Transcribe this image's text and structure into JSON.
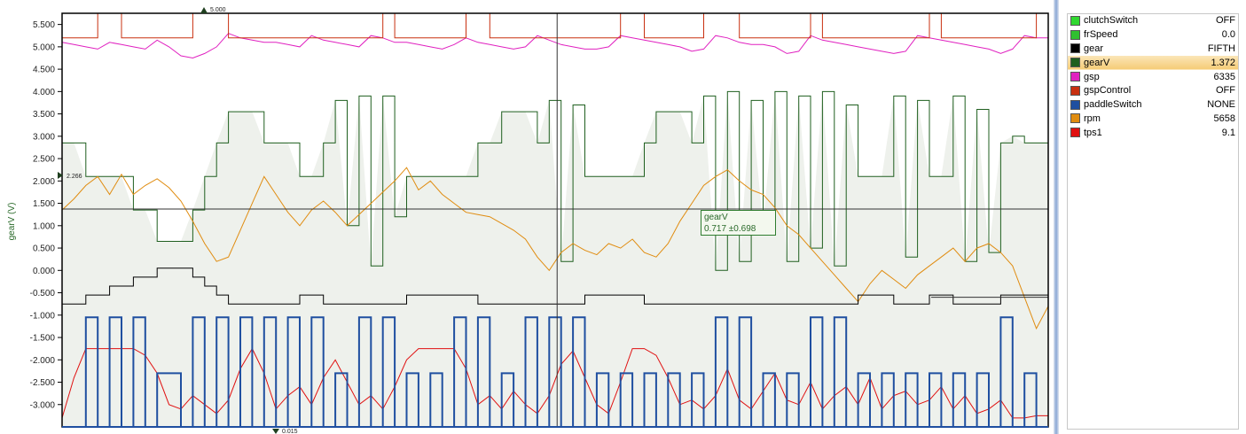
{
  "chart_data": {
    "type": "line",
    "ylabel": "gearV (V)",
    "ylim": [
      -3.5,
      5.75
    ],
    "yticks": [
      "5.500",
      "5.000",
      "4.500",
      "4.000",
      "3.500",
      "3.000",
      "2.500",
      "2.000",
      "1.500",
      "1.000",
      "0.500",
      "0.000",
      "-0.500",
      "-1.000",
      "-1.500",
      "-2.000",
      "-2.500",
      "-3.000"
    ],
    "ytick_values": [
      5.5,
      5.0,
      4.5,
      4.0,
      3.5,
      3.0,
      2.5,
      2.0,
      1.5,
      1.0,
      0.5,
      0.0,
      -0.5,
      -1.0,
      -1.5,
      -2.0,
      -2.5,
      -3.0
    ],
    "markers": {
      "top": "5.000",
      "left": "2.266",
      "bottom": "0.015"
    },
    "cursor": {
      "horizontal_value": 1.372
    },
    "tooltip": {
      "series": "gearV",
      "value": "0.717 ±0.698"
    },
    "series": [
      {
        "name": "gsp",
        "color": "#e020c0",
        "y": [
          5.1,
          5.05,
          5.0,
          4.95,
          5.1,
          5.05,
          5.0,
          4.95,
          5.15,
          5.0,
          4.8,
          4.75,
          4.85,
          5.0,
          5.3,
          5.2,
          5.15,
          5.1,
          5.1,
          5.05,
          5.0,
          5.25,
          5.15,
          5.1,
          5.05,
          5.0,
          5.25,
          5.2,
          5.1,
          5.1,
          5.05,
          5.0,
          4.95,
          5.05,
          5.2,
          5.1,
          5.05,
          5.0,
          4.95,
          5.0,
          5.25,
          5.15,
          5.05,
          5.0,
          4.95,
          4.95,
          5.0,
          5.25,
          5.2,
          5.15,
          5.1,
          5.05,
          5.0,
          4.9,
          4.95,
          5.25,
          5.2,
          5.1,
          5.05,
          5.05,
          5.0,
          4.85,
          4.9,
          5.25,
          5.15,
          5.1,
          5.05,
          5.0,
          4.95,
          4.9,
          4.85,
          4.9,
          5.25,
          5.2,
          5.15,
          5.1,
          5.05,
          5.0,
          4.95,
          4.85,
          4.95,
          5.25,
          5.2,
          5.2
        ]
      },
      {
        "name": "gspControl",
        "color": "#c83010",
        "y": [
          5.2,
          5.2,
          5.2,
          5.75,
          5.75,
          5.2,
          5.2,
          5.2,
          5.2,
          5.2,
          5.2,
          5.75,
          5.75,
          5.75,
          5.2,
          5.2,
          5.2,
          5.2,
          5.2,
          5.2,
          5.2,
          5.2,
          5.2,
          5.2,
          5.2,
          5.2,
          5.2,
          5.75,
          5.2,
          5.2,
          5.2,
          5.2,
          5.2,
          5.2,
          5.75,
          5.75,
          5.2,
          5.2,
          5.2,
          5.2,
          5.2,
          5.2,
          5.2,
          5.2,
          5.2,
          5.2,
          5.2,
          5.75,
          5.75,
          5.2,
          5.2,
          5.2,
          5.2,
          5.2,
          5.75,
          5.75,
          5.75,
          5.2,
          5.2,
          5.2,
          5.2,
          5.2,
          5.2,
          5.75,
          5.2,
          5.2,
          5.2,
          5.2,
          5.2,
          5.2,
          5.2,
          5.2,
          5.2,
          5.75,
          5.2,
          5.2,
          5.2,
          5.2,
          5.2,
          5.2,
          5.2,
          5.2,
          5.75,
          5.2
        ]
      },
      {
        "name": "gearV",
        "color": "#1f5f1f",
        "y": [
          2.85,
          2.85,
          2.1,
          2.1,
          2.1,
          2.1,
          1.35,
          1.35,
          0.65,
          0.65,
          0.65,
          1.35,
          2.1,
          2.85,
          3.55,
          3.55,
          3.55,
          2.85,
          2.85,
          2.85,
          2.1,
          2.1,
          2.85,
          3.8,
          1.0,
          3.9,
          0.1,
          3.9,
          1.2,
          2.1,
          2.1,
          2.1,
          2.1,
          2.1,
          2.1,
          2.85,
          2.85,
          3.55,
          3.55,
          3.55,
          2.85,
          3.8,
          0.2,
          3.7,
          2.1,
          2.1,
          2.1,
          2.1,
          2.1,
          2.85,
          3.55,
          3.55,
          3.55,
          2.85,
          3.9,
          0.0,
          4.0,
          0.2,
          3.8,
          1.0,
          4.0,
          0.2,
          3.9,
          0.5,
          4.0,
          0.1,
          3.7,
          2.1,
          2.1,
          2.1,
          3.9,
          0.3,
          3.8,
          2.1,
          2.1,
          3.9,
          0.2,
          3.6,
          0.4,
          2.85,
          3.0,
          2.85,
          2.85,
          2.85
        ]
      },
      {
        "name": "rpm",
        "color": "#e08c10",
        "y": [
          1.35,
          1.6,
          1.9,
          2.1,
          1.7,
          2.15,
          1.7,
          1.9,
          2.05,
          1.85,
          1.55,
          1.1,
          0.6,
          0.2,
          0.3,
          0.9,
          1.5,
          2.1,
          1.7,
          1.3,
          1.0,
          1.35,
          1.55,
          1.3,
          1.0,
          1.25,
          1.5,
          1.75,
          2.0,
          2.3,
          1.8,
          2.0,
          1.7,
          1.5,
          1.3,
          1.25,
          1.2,
          1.05,
          0.9,
          0.7,
          0.3,
          0.0,
          0.4,
          0.6,
          0.45,
          0.35,
          0.6,
          0.5,
          0.7,
          0.4,
          0.3,
          0.6,
          1.1,
          1.5,
          1.9,
          2.1,
          2.25,
          2.0,
          1.8,
          1.7,
          1.4,
          1.0,
          0.8,
          0.5,
          0.2,
          -0.1,
          -0.4,
          -0.7,
          -0.3,
          0.0,
          -0.2,
          -0.4,
          -0.1,
          0.1,
          0.3,
          0.5,
          0.2,
          0.5,
          0.6,
          0.4,
          0.1,
          -0.6,
          -1.3,
          -0.8
        ]
      },
      {
        "name": "gear",
        "color": "#000000",
        "y": [
          -0.75,
          -0.75,
          -0.55,
          -0.55,
          -0.35,
          -0.35,
          -0.15,
          -0.15,
          0.05,
          0.05,
          0.05,
          -0.15,
          -0.35,
          -0.55,
          -0.75,
          -0.75,
          -0.75,
          -0.75,
          -0.75,
          -0.75,
          -0.55,
          -0.55,
          -0.75,
          -0.75,
          -0.75,
          -0.75,
          -0.75,
          -0.75,
          -0.75,
          -0.55,
          -0.55,
          -0.55,
          -0.55,
          -0.55,
          -0.55,
          -0.75,
          -0.75,
          -0.75,
          -0.75,
          -0.75,
          -0.75,
          -0.75,
          -0.75,
          -0.75,
          -0.55,
          -0.55,
          -0.55,
          -0.55,
          -0.55,
          -0.75,
          -0.75,
          -0.75,
          -0.75,
          -0.75,
          -0.75,
          -0.75,
          -0.75,
          -0.75,
          -0.75,
          -0.75,
          -0.75,
          -0.75,
          -0.75,
          -0.75,
          -0.75,
          -0.75,
          -0.75,
          -0.55,
          -0.55,
          -0.55,
          -0.75,
          -0.75,
          -0.75,
          -0.55,
          -0.55,
          -0.75,
          -0.75,
          -0.75,
          -0.75,
          -0.55,
          -0.55,
          -0.55,
          -0.55,
          -0.55
        ]
      },
      {
        "name": "tps1",
        "color": "#e01010",
        "y": [
          -3.3,
          -2.4,
          -1.75,
          -1.75,
          -1.75,
          -1.75,
          -1.75,
          -1.9,
          -2.3,
          -3.0,
          -3.1,
          -2.8,
          -3.0,
          -3.2,
          -2.9,
          -2.2,
          -1.75,
          -2.3,
          -3.1,
          -2.8,
          -2.6,
          -3.0,
          -2.4,
          -2.0,
          -2.5,
          -3.0,
          -2.8,
          -3.1,
          -2.6,
          -2.0,
          -1.75,
          -1.75,
          -1.75,
          -1.75,
          -2.2,
          -3.0,
          -2.8,
          -3.1,
          -2.7,
          -3.0,
          -3.2,
          -2.8,
          -2.1,
          -1.8,
          -2.4,
          -3.0,
          -3.2,
          -2.5,
          -1.75,
          -1.75,
          -1.9,
          -2.4,
          -3.0,
          -2.9,
          -3.1,
          -2.8,
          -2.2,
          -2.9,
          -3.1,
          -2.7,
          -2.3,
          -2.9,
          -3.0,
          -2.5,
          -3.1,
          -2.8,
          -2.6,
          -3.0,
          -2.4,
          -3.1,
          -2.8,
          -2.7,
          -3.0,
          -2.9,
          -2.6,
          -3.1,
          -2.8,
          -3.2,
          -3.1,
          -2.9,
          -3.3,
          -3.3,
          -3.25,
          -3.25
        ]
      },
      {
        "name": "paddleSwitch",
        "color": "#1f4fa0",
        "y": [
          -3.5,
          -3.5,
          -1.05,
          -3.5,
          -1.05,
          -3.5,
          -1.05,
          -3.5,
          -2.3,
          -2.3,
          -3.5,
          -1.05,
          -3.5,
          -1.05,
          -3.5,
          -1.05,
          -3.5,
          -1.05,
          -3.5,
          -1.05,
          -3.5,
          -1.05,
          -3.5,
          -2.3,
          -3.5,
          -1.05,
          -3.5,
          -1.05,
          -3.5,
          -2.3,
          -3.5,
          -2.3,
          -3.5,
          -1.05,
          -3.5,
          -1.05,
          -3.5,
          -2.3,
          -3.5,
          -1.05,
          -3.5,
          -1.05,
          -3.5,
          -1.05,
          -3.5,
          -2.3,
          -3.5,
          -2.3,
          -3.5,
          -2.3,
          -3.5,
          -2.3,
          -3.5,
          -2.3,
          -3.5,
          -1.05,
          -3.5,
          -1.05,
          -3.5,
          -2.3,
          -3.5,
          -2.3,
          -3.5,
          -1.05,
          -3.5,
          -1.05,
          -3.5,
          -2.3,
          -3.5,
          -2.3,
          -3.5,
          -2.3,
          -3.5,
          -2.3,
          -3.5,
          -2.3,
          -3.5,
          -2.3,
          -3.5,
          -1.05,
          -3.5,
          -2.3,
          -3.5,
          -3.5
        ]
      }
    ]
  },
  "legend": {
    "items": [
      {
        "name": "clutchSwitch",
        "value": "OFF",
        "color": "#30d830"
      },
      {
        "name": "frSpeed",
        "value": "0.0",
        "color": "#30c030"
      },
      {
        "name": "gear",
        "value": "FIFTH",
        "color": "#000000"
      },
      {
        "name": "gearV",
        "value": "1.372",
        "color": "#1f5f1f",
        "selected": true
      },
      {
        "name": "gsp",
        "value": "6335",
        "color": "#e020c0"
      },
      {
        "name": "gspControl",
        "value": "OFF",
        "color": "#c83010"
      },
      {
        "name": "paddleSwitch",
        "value": "NONE",
        "color": "#1f4fa0"
      },
      {
        "name": "rpm",
        "value": "5658",
        "color": "#e08c10"
      },
      {
        "name": "tps1",
        "value": "9.1",
        "color": "#e01010"
      }
    ]
  }
}
